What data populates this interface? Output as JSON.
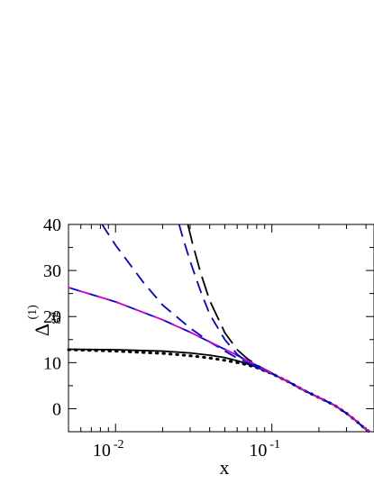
{
  "chart_data": {
    "type": "line",
    "xlabel": "x",
    "ylabel": "Δ",
    "ylabel_superscript": "(1)",
    "ylabel_subscript": "gg",
    "x_scale": "log",
    "xlim": [
      0.005,
      0.45
    ],
    "ylim": [
      -5,
      40
    ],
    "grid": false,
    "y_ticks": [
      0,
      10,
      20,
      30,
      40
    ],
    "y_tick_labels": [
      "0",
      "10",
      "20",
      "30",
      "40"
    ],
    "x_major_ticks": [
      0.01,
      0.1
    ],
    "x_tick_labels": [
      {
        "base": "10",
        "exp": "-2"
      },
      {
        "base": "10",
        "exp": "-1"
      }
    ],
    "series": [
      {
        "style": "solid",
        "color": "#000000",
        "points": [
          [
            0.005,
            12.9
          ],
          [
            0.01,
            12.8
          ],
          [
            0.02,
            12.5
          ],
          [
            0.03,
            12.1
          ],
          [
            0.04,
            11.6
          ],
          [
            0.05,
            11.1
          ],
          [
            0.06,
            10.4
          ],
          [
            0.07,
            9.7
          ],
          [
            0.08,
            9.0
          ],
          [
            0.1,
            7.6
          ],
          [
            0.13,
            5.7
          ],
          [
            0.16,
            4.0
          ],
          [
            0.2,
            2.4
          ],
          [
            0.25,
            0.8
          ],
          [
            0.3,
            -1.0
          ],
          [
            0.35,
            -2.8
          ],
          [
            0.39,
            -4.2
          ],
          [
            0.42,
            -5.0
          ]
        ]
      },
      {
        "style": "dotted",
        "color": "#000000",
        "points": [
          [
            0.005,
            12.8
          ],
          [
            0.01,
            12.5
          ],
          [
            0.02,
            12.0
          ],
          [
            0.03,
            11.5
          ],
          [
            0.04,
            11.0
          ],
          [
            0.05,
            10.5
          ],
          [
            0.06,
            10.0
          ],
          [
            0.07,
            9.5
          ],
          [
            0.08,
            8.9
          ],
          [
            0.1,
            7.6
          ],
          [
            0.13,
            5.7
          ],
          [
            0.16,
            4.0
          ],
          [
            0.2,
            2.4
          ],
          [
            0.25,
            0.8
          ],
          [
            0.3,
            -1.0
          ],
          [
            0.35,
            -2.8
          ],
          [
            0.39,
            -4.2
          ],
          [
            0.42,
            -5.0
          ]
        ]
      },
      {
        "style": "dash",
        "color": "#0000dd",
        "points": [
          [
            0.0082,
            40
          ],
          [
            0.01,
            35.5
          ],
          [
            0.015,
            27.5
          ],
          [
            0.02,
            22.5
          ],
          [
            0.03,
            17.5
          ],
          [
            0.04,
            14.5
          ],
          [
            0.05,
            12.5
          ],
          [
            0.06,
            11.0
          ],
          [
            0.07,
            10.0
          ],
          [
            0.08,
            9.0
          ],
          [
            0.1,
            7.6
          ],
          [
            0.13,
            5.7
          ],
          [
            0.16,
            4.0
          ],
          [
            0.2,
            2.4
          ],
          [
            0.25,
            0.8
          ],
          [
            0.3,
            -1.0
          ],
          [
            0.35,
            -2.8
          ],
          [
            0.39,
            -4.2
          ],
          [
            0.42,
            -5.0
          ]
        ]
      },
      {
        "style": "dash",
        "color": "#0000dd",
        "points": [
          [
            0.0255,
            40
          ],
          [
            0.027,
            37
          ],
          [
            0.03,
            32
          ],
          [
            0.035,
            25.5
          ],
          [
            0.04,
            20.5
          ],
          [
            0.05,
            15.0
          ],
          [
            0.06,
            11.8
          ],
          [
            0.07,
            10.0
          ],
          [
            0.08,
            9.0
          ],
          [
            0.1,
            7.6
          ],
          [
            0.13,
            5.7
          ],
          [
            0.16,
            4.0
          ],
          [
            0.2,
            2.4
          ],
          [
            0.25,
            0.8
          ],
          [
            0.3,
            -1.0
          ],
          [
            0.35,
            -2.8
          ],
          [
            0.39,
            -4.2
          ],
          [
            0.42,
            -5.0
          ]
        ]
      },
      {
        "style": "longdash",
        "color": "#000000",
        "points": [
          [
            0.029,
            40
          ],
          [
            0.031,
            36
          ],
          [
            0.035,
            29.5
          ],
          [
            0.04,
            23.5
          ],
          [
            0.05,
            16.5
          ],
          [
            0.06,
            12.8
          ],
          [
            0.07,
            10.8
          ],
          [
            0.08,
            9.5
          ],
          [
            0.1,
            7.7
          ],
          [
            0.13,
            5.7
          ],
          [
            0.16,
            4.0
          ],
          [
            0.2,
            2.4
          ],
          [
            0.25,
            0.8
          ],
          [
            0.3,
            -1.0
          ],
          [
            0.35,
            -2.8
          ],
          [
            0.39,
            -4.2
          ],
          [
            0.42,
            -5.0
          ]
        ]
      },
      {
        "style": "dash",
        "color": "#0000dd",
        "points": [
          [
            0.005,
            26.3
          ],
          [
            0.01,
            23.2
          ],
          [
            0.02,
            19.3
          ],
          [
            0.03,
            16.6
          ],
          [
            0.04,
            14.5
          ],
          [
            0.05,
            12.9
          ],
          [
            0.06,
            11.6
          ],
          [
            0.07,
            10.4
          ],
          [
            0.08,
            9.4
          ],
          [
            0.1,
            7.6
          ],
          [
            0.13,
            5.7
          ],
          [
            0.16,
            4.0
          ],
          [
            0.2,
            2.4
          ],
          [
            0.25,
            0.8
          ],
          [
            0.3,
            -1.0
          ],
          [
            0.35,
            -2.8
          ],
          [
            0.39,
            -4.2
          ],
          [
            0.42,
            -5.0
          ]
        ]
      },
      {
        "style": "dash",
        "color": "#cc00cc",
        "points": [
          [
            0.005,
            26.3
          ],
          [
            0.01,
            23.2
          ],
          [
            0.02,
            19.3
          ],
          [
            0.03,
            16.6
          ],
          [
            0.04,
            14.5
          ],
          [
            0.05,
            12.9
          ],
          [
            0.06,
            11.6
          ],
          [
            0.07,
            10.4
          ],
          [
            0.08,
            9.4
          ],
          [
            0.1,
            7.6
          ],
          [
            0.13,
            5.7
          ],
          [
            0.16,
            4.0
          ],
          [
            0.2,
            2.4
          ],
          [
            0.25,
            0.8
          ],
          [
            0.3,
            -1.0
          ],
          [
            0.35,
            -2.8
          ],
          [
            0.39,
            -4.2
          ],
          [
            0.42,
            -5.0
          ]
        ]
      }
    ]
  }
}
